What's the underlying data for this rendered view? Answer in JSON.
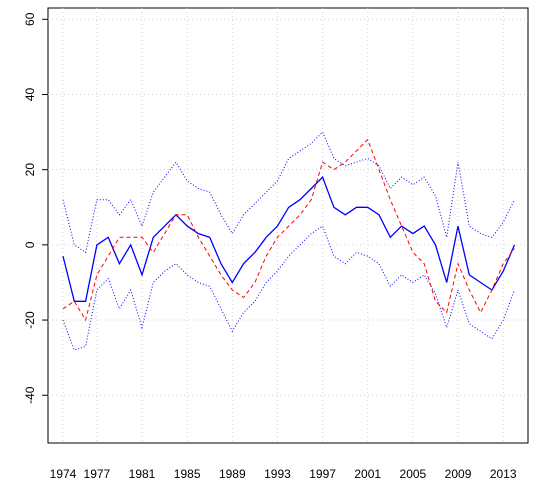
{
  "chart_data": {
    "type": "line",
    "x": [
      1974,
      1975,
      1976,
      1977,
      1978,
      1979,
      1980,
      1981,
      1982,
      1983,
      1984,
      1985,
      1986,
      1987,
      1988,
      1989,
      1990,
      1991,
      1992,
      1993,
      1994,
      1995,
      1996,
      1997,
      1998,
      1999,
      2000,
      2001,
      2002,
      2003,
      2004,
      2005,
      2006,
      2007,
      2008,
      2009,
      2010,
      2011,
      2012,
      2013,
      2014
    ],
    "xlim": [
      1972.67,
      2015.2
    ],
    "xticks": [
      1974,
      1977,
      1981,
      1985,
      1989,
      1993,
      1997,
      2001,
      2005,
      2009,
      2013
    ],
    "ylim": [
      -52.7,
      63
    ],
    "yticks": [
      -40,
      -20,
      0,
      20,
      40,
      60
    ],
    "grid": true,
    "series": [
      {
        "color": "#0000ff",
        "style": "solid",
        "values": [
          -3,
          -15,
          -15,
          0,
          2,
          -5,
          0,
          -8,
          2,
          5,
          8,
          5,
          3,
          2,
          -5,
          -10,
          -5,
          -2,
          2,
          5,
          10,
          12,
          15,
          18,
          10,
          8,
          10,
          10,
          8,
          2,
          5,
          3,
          5,
          0,
          -10,
          5,
          -8,
          -10,
          -12,
          -7,
          0
        ]
      },
      {
        "color": "#ff0000",
        "style": "dashed",
        "values": [
          -17,
          -15,
          -20,
          -8,
          -3,
          2,
          2,
          2,
          -2,
          3,
          8,
          8,
          2,
          -3,
          -8,
          -12,
          -14,
          -10,
          -3,
          2,
          5,
          8,
          12,
          22,
          20,
          22,
          25,
          28,
          20,
          12,
          5,
          -2,
          -5,
          -15,
          -18,
          -5,
          -12,
          -18,
          -12,
          -5,
          -1
        ]
      },
      {
        "color": "#0000ff",
        "style": "dotted",
        "values": [
          12,
          0,
          -2,
          12,
          12,
          8,
          12,
          5,
          14,
          18,
          22,
          17,
          15,
          14,
          8,
          3,
          8,
          11,
          14,
          17,
          23,
          25,
          27,
          30,
          23,
          21,
          22,
          23,
          21,
          15,
          18,
          16,
          18,
          13,
          2,
          22,
          5,
          3,
          2,
          6,
          12
        ]
      },
      {
        "color": "#0000ff",
        "style": "dotted",
        "values": [
          -20,
          -28,
          -27,
          -12,
          -9,
          -17,
          -12,
          -22,
          -10,
          -7,
          -5,
          -8,
          -10,
          -11,
          -17,
          -23,
          -18,
          -15,
          -10,
          -7,
          -3,
          0,
          3,
          5,
          -3,
          -5,
          -2,
          -3,
          -5,
          -11,
          -8,
          -10,
          -8,
          -13,
          -22,
          -12,
          -21,
          -23,
          -25,
          -20,
          -12
        ]
      }
    ]
  }
}
